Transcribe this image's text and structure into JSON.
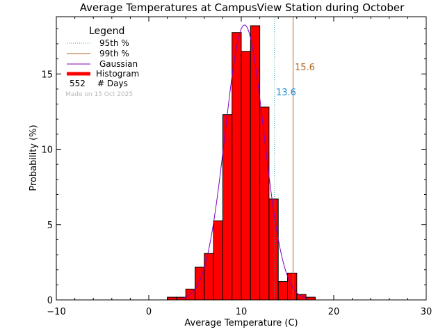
{
  "chart_data": {
    "type": "bar",
    "title": "Average Temperatures at CampusView Station during October",
    "xlabel": "Average Temperature (C)",
    "ylabel": "Probability (%)",
    "xlim": [
      -10,
      30
    ],
    "ylim": [
      0,
      18.8
    ],
    "xticks": [
      -10,
      0,
      10,
      20,
      30
    ],
    "yticks": [
      0,
      5,
      10,
      15
    ],
    "bin_width": 1,
    "bins": [
      {
        "x": 2.0,
        "y": 0.18
      },
      {
        "x": 3.0,
        "y": 0.18
      },
      {
        "x": 4.0,
        "y": 0.72
      },
      {
        "x": 5.0,
        "y": 2.17
      },
      {
        "x": 6.0,
        "y": 3.08
      },
      {
        "x": 7.0,
        "y": 5.25
      },
      {
        "x": 8.0,
        "y": 12.3
      },
      {
        "x": 9.0,
        "y": 17.75
      },
      {
        "x": 10.0,
        "y": 16.5
      },
      {
        "x": 11.0,
        "y": 18.2
      },
      {
        "x": 12.0,
        "y": 12.8
      },
      {
        "x": 13.0,
        "y": 6.7
      },
      {
        "x": 14.0,
        "y": 1.22
      },
      {
        "x": 15.0,
        "y": 1.78
      },
      {
        "x": 16.0,
        "y": 0.36
      },
      {
        "x": 17.0,
        "y": 0.18
      }
    ],
    "gaussian": {
      "mean": 10.35,
      "peak": 18.25,
      "sigma": 2.1
    },
    "p95": {
      "label": "13.6",
      "value": 13.6,
      "color": "#1f8fd8"
    },
    "p99": {
      "label": "15.6",
      "value": 15.6,
      "color": "#b5651d"
    },
    "legend": {
      "title": "Legend",
      "items": [
        "95th %",
        "99th %",
        "Gaussian",
        "Histogram"
      ],
      "days_count": "552",
      "days_label": "# Days",
      "made_on": "Made on 15 Oct 2025"
    },
    "colors": {
      "histogram": "#ff0000",
      "gaussian": "#8000c0",
      "p95": "#1fa5a5",
      "p99": "#b5651d"
    }
  }
}
